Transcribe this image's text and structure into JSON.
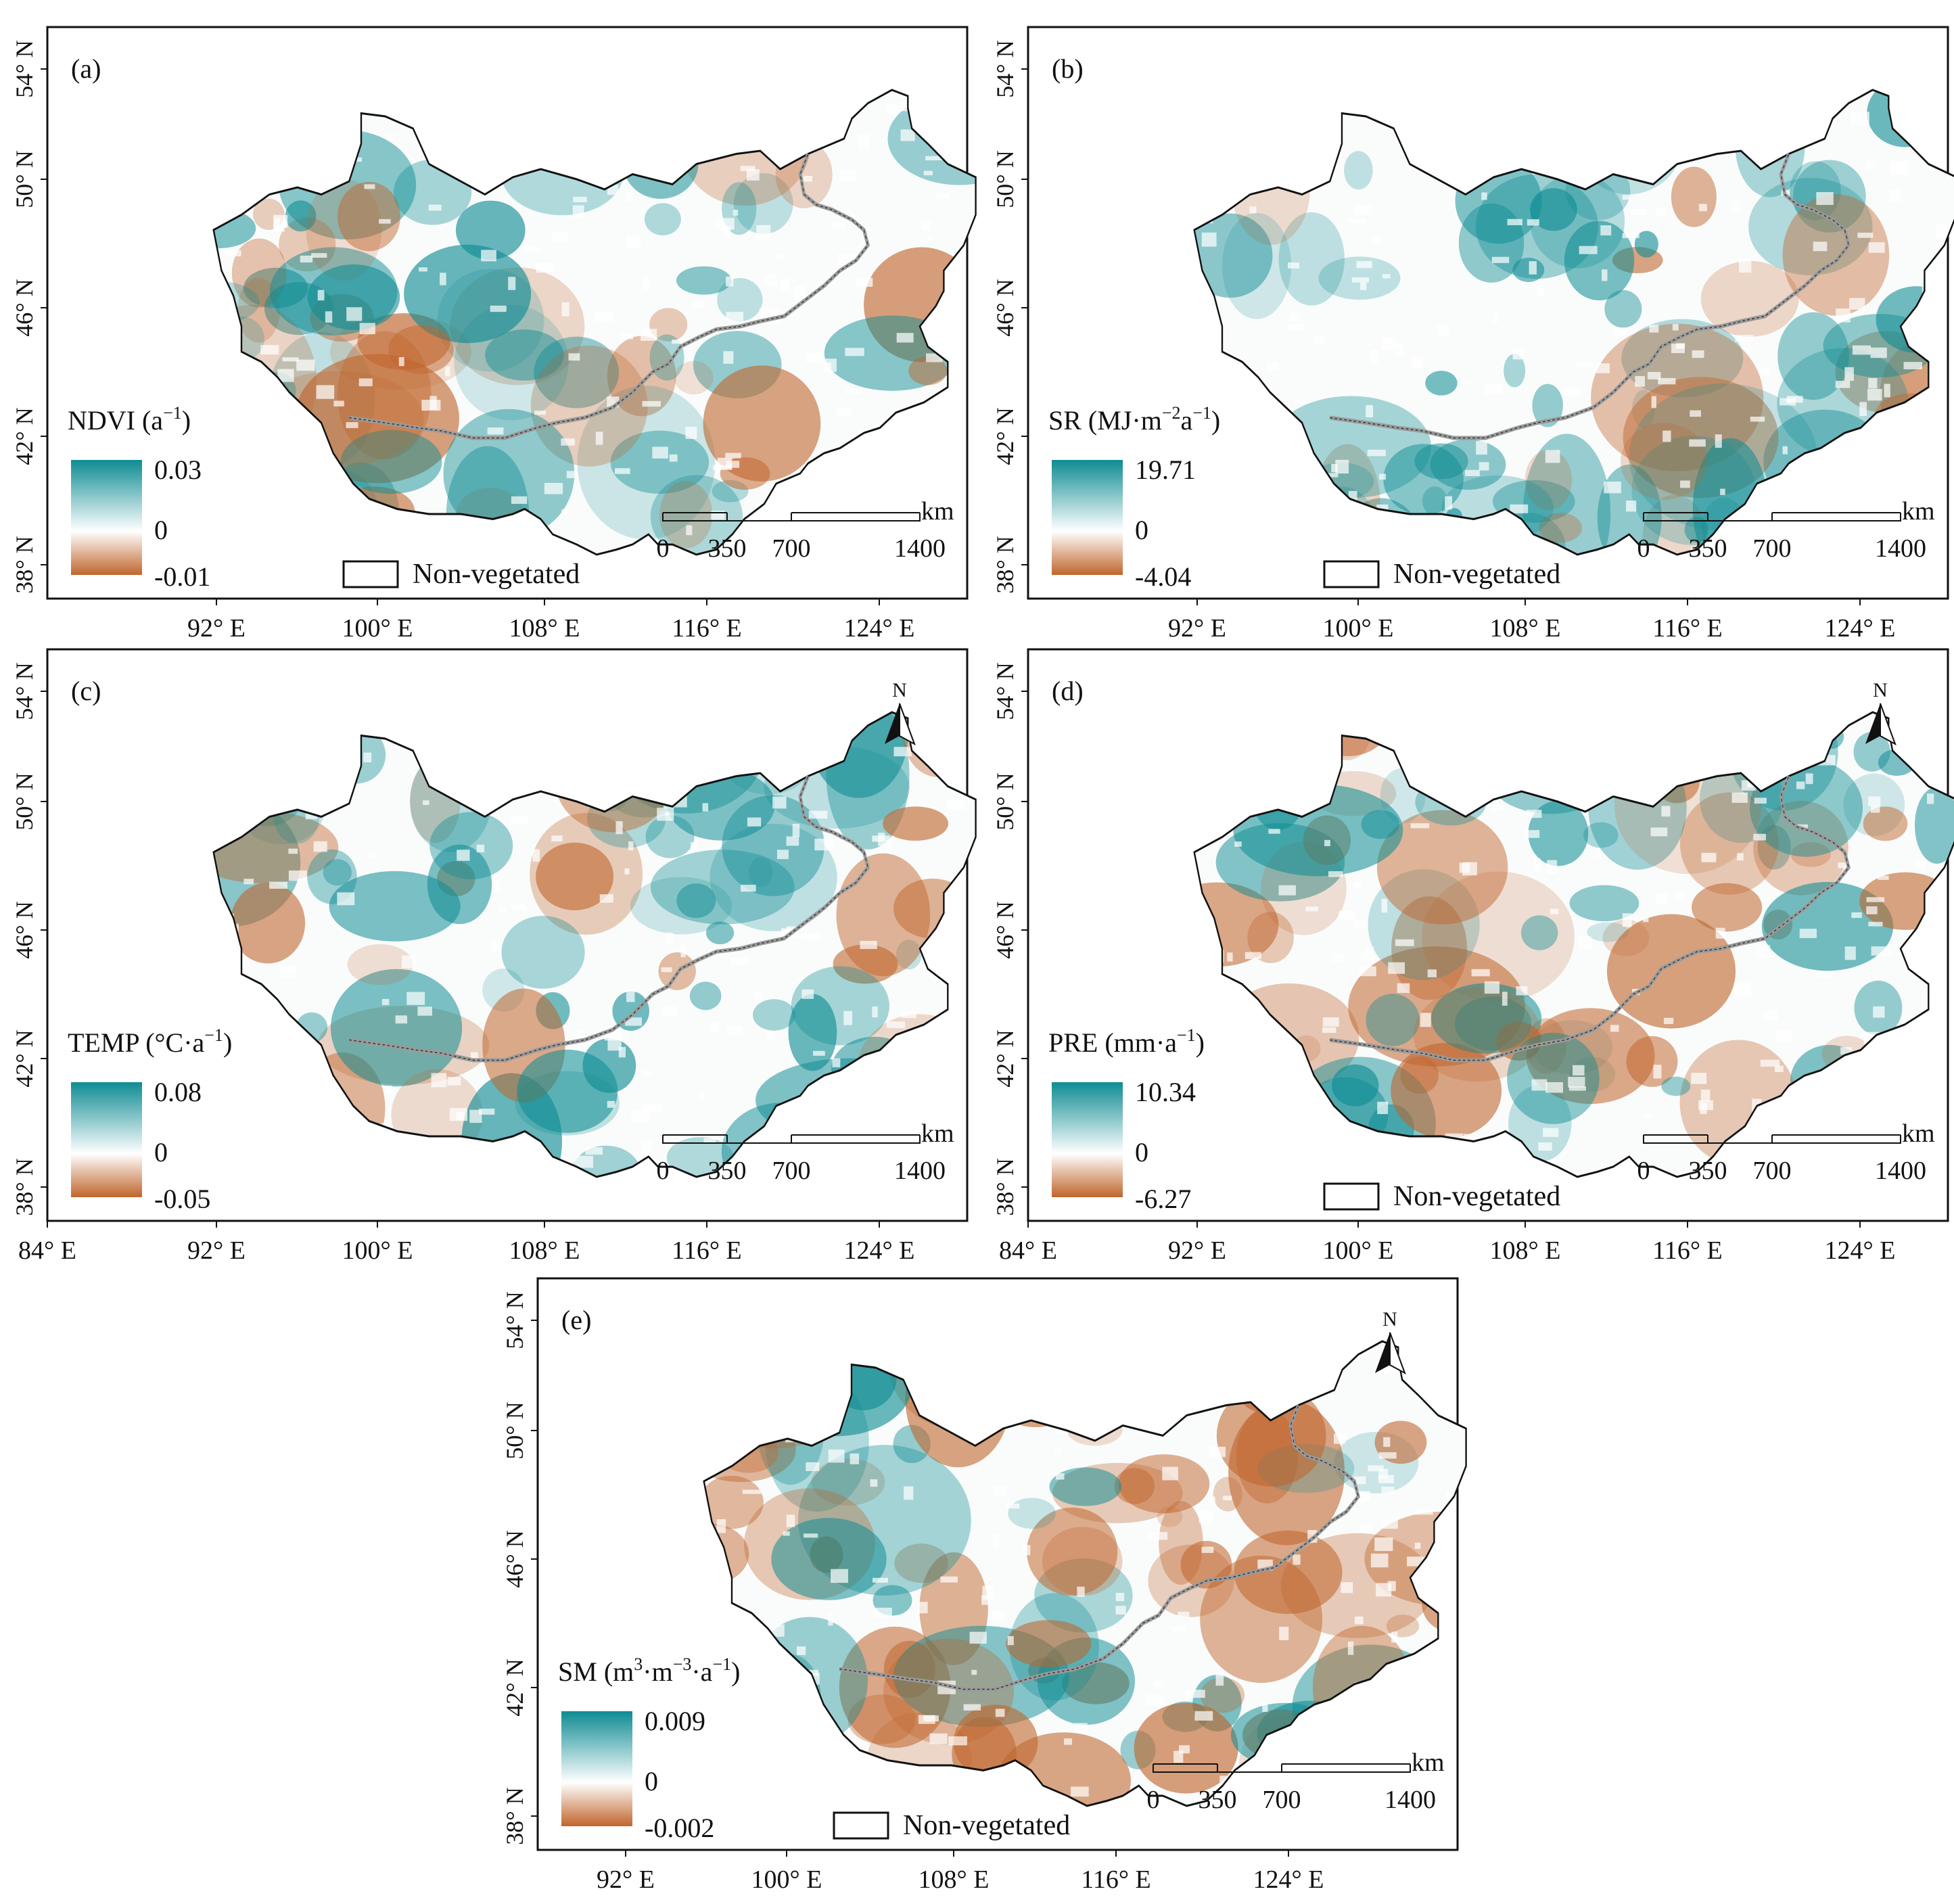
{
  "colors": {
    "positive": "#0e8c93",
    "neutral": "#ffffff",
    "negative": "#c0652c",
    "border": "#111111",
    "national_border": "#9a9a9a"
  },
  "axes": {
    "lat_labels": [
      "54° N",
      "50° N",
      "46° N",
      "42° N",
      "38° N"
    ],
    "lon_labels_top_row": [
      "92° E",
      "100° E",
      "108° E",
      "116° E",
      "124° E"
    ],
    "lon_labels_mid_row": [
      "84° E",
      "92° E",
      "100° E",
      "108° E",
      "116° E",
      "124° E"
    ],
    "lon_labels_bottom": [
      "92° E",
      "100° E",
      "108° E",
      "116° E",
      "124° E"
    ]
  },
  "scalebar": {
    "unit": "km",
    "ticks": [
      "0",
      "350",
      "700",
      "1400"
    ]
  },
  "north_arrow_label": "N",
  "legend_nonveg": "Non-vegetated",
  "panels": [
    {
      "id": "a",
      "tag": "(a)",
      "var": "NDVI (a",
      "sup": "−1",
      "close": ")",
      "max": "0.03",
      "mid": "0",
      "min": "-0.01",
      "north": false,
      "nonveg": true,
      "dominance": 0.55
    },
    {
      "id": "b",
      "tag": "(b)",
      "var": "SR (MJ·m",
      "sup": "−2",
      "mid2": "a",
      "sup2": "−1",
      "close": ")",
      "max": "19.71",
      "mid": "0",
      "min": "-4.04",
      "north": false,
      "nonveg": true,
      "dominance": 0.75
    },
    {
      "id": "c",
      "tag": "(c)",
      "var": "TEMP (°C·a",
      "sup": "−1",
      "close": ")",
      "max": "0.08",
      "mid": "0",
      "min": "-0.05",
      "north": true,
      "nonveg": false,
      "dominance": 0.7
    },
    {
      "id": "d",
      "tag": "(d)",
      "var": "PRE (mm·a",
      "sup": "−1",
      "close": ")",
      "max": "10.34",
      "mid": "0",
      "min": "-6.27",
      "north": true,
      "nonveg": true,
      "dominance": 0.5
    },
    {
      "id": "e",
      "tag": "(e)",
      "var": "SM (m",
      "sup": "3",
      "mid2": "·m",
      "sup2": "−3",
      "mid3": "·a",
      "sup3": "−1",
      "close": ")",
      "max": "0.009",
      "mid": "0",
      "min": "-0.002",
      "north": true,
      "nonveg": true,
      "dominance": 0.45
    }
  ]
}
